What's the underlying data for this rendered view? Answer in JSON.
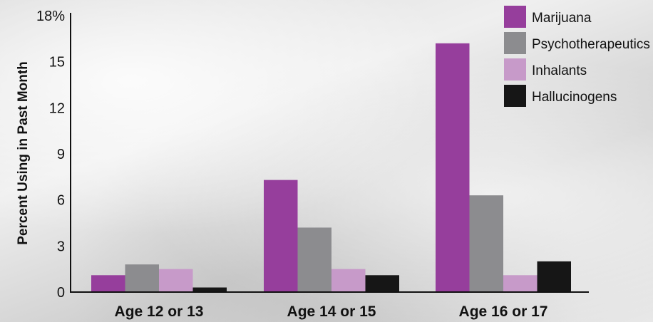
{
  "chart_data": {
    "type": "bar",
    "ylabel": "Percent Using in Past Month",
    "xlabel": "",
    "ylim": [
      0,
      18
    ],
    "yticks": [
      {
        "value": 0,
        "label": "0"
      },
      {
        "value": 3,
        "label": "3"
      },
      {
        "value": 6,
        "label": "6"
      },
      {
        "value": 9,
        "label": "9"
      },
      {
        "value": 12,
        "label": "12"
      },
      {
        "value": 15,
        "label": "15"
      },
      {
        "value": 18,
        "label": "18%"
      }
    ],
    "categories": [
      "Age 12 or 13",
      "Age 14 or 15",
      "Age 16 or 17"
    ],
    "series": [
      {
        "name": "Marijuana",
        "color": "#963e9c",
        "values": [
          1.1,
          7.3,
          16.2
        ]
      },
      {
        "name": "Psychotherapeutics",
        "color": "#8c8c8f",
        "values": [
          1.8,
          4.2,
          6.3
        ]
      },
      {
        "name": "Inhalants",
        "color": "#c79ac9",
        "values": [
          1.5,
          1.5,
          1.1
        ]
      },
      {
        "name": "Hallucinogens",
        "color": "#161616",
        "values": [
          0.3,
          1.1,
          2.0
        ]
      }
    ],
    "legend_position": "top-right",
    "grid": false
  }
}
